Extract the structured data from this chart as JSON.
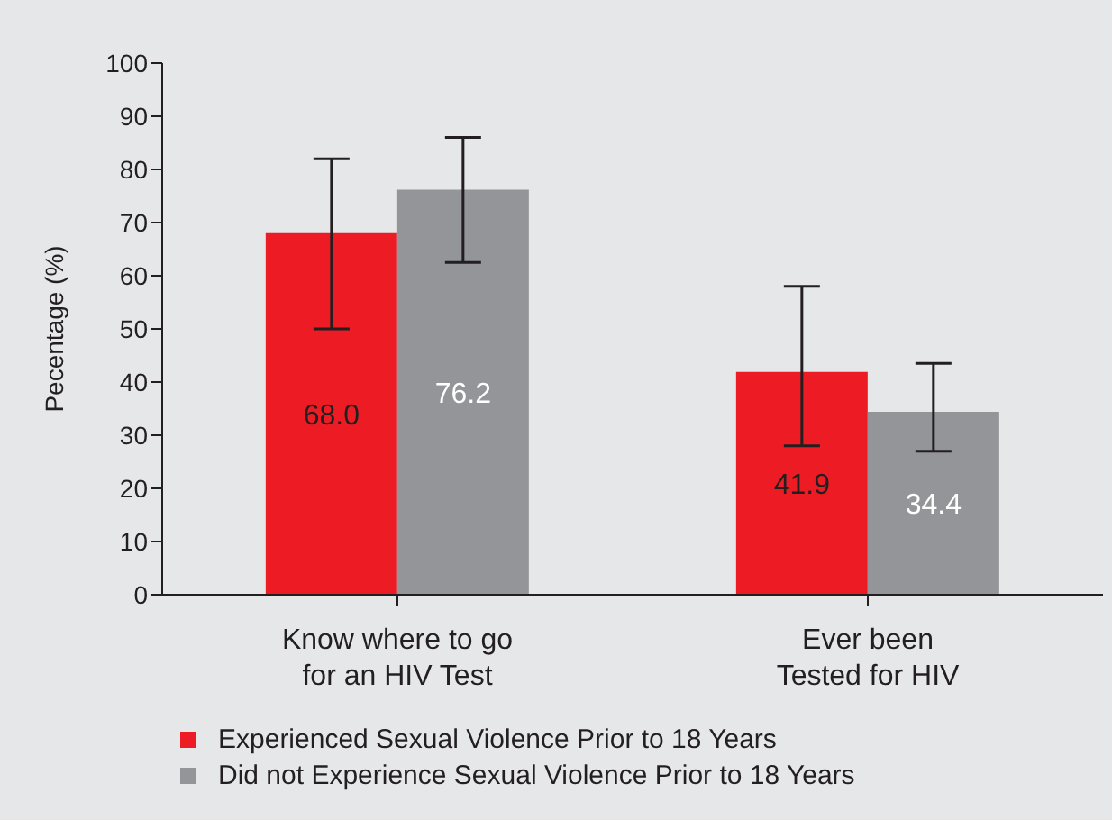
{
  "chart_data": {
    "type": "bar",
    "ylabel": "Pecentage  (%)",
    "categories": [
      "Know where to go\nfor an HIV Test",
      "Ever been\nTested for HIV"
    ],
    "series": [
      {
        "name": "Experienced Sexual Violence Prior to 18 Years",
        "color": "#ed1c24",
        "values": [
          68.0,
          41.9
        ],
        "value_labels": [
          "68.0",
          "41.9"
        ],
        "errors": [
          [
            50,
            82
          ],
          [
            28,
            58
          ]
        ]
      },
      {
        "name": "Did not Experience Sexual Violence Prior to 18 Years",
        "color": "#939598",
        "values": [
          76.2,
          34.4
        ],
        "value_labels": [
          "76.2",
          "34.4"
        ],
        "errors": [
          [
            62.5,
            86
          ],
          [
            27,
            43.5
          ]
        ]
      }
    ],
    "ylim": [
      0,
      100
    ],
    "yticks": [
      0,
      10,
      20,
      30,
      40,
      50,
      60,
      70,
      80,
      90,
      100
    ],
    "grid": false,
    "legend": "bottom"
  }
}
